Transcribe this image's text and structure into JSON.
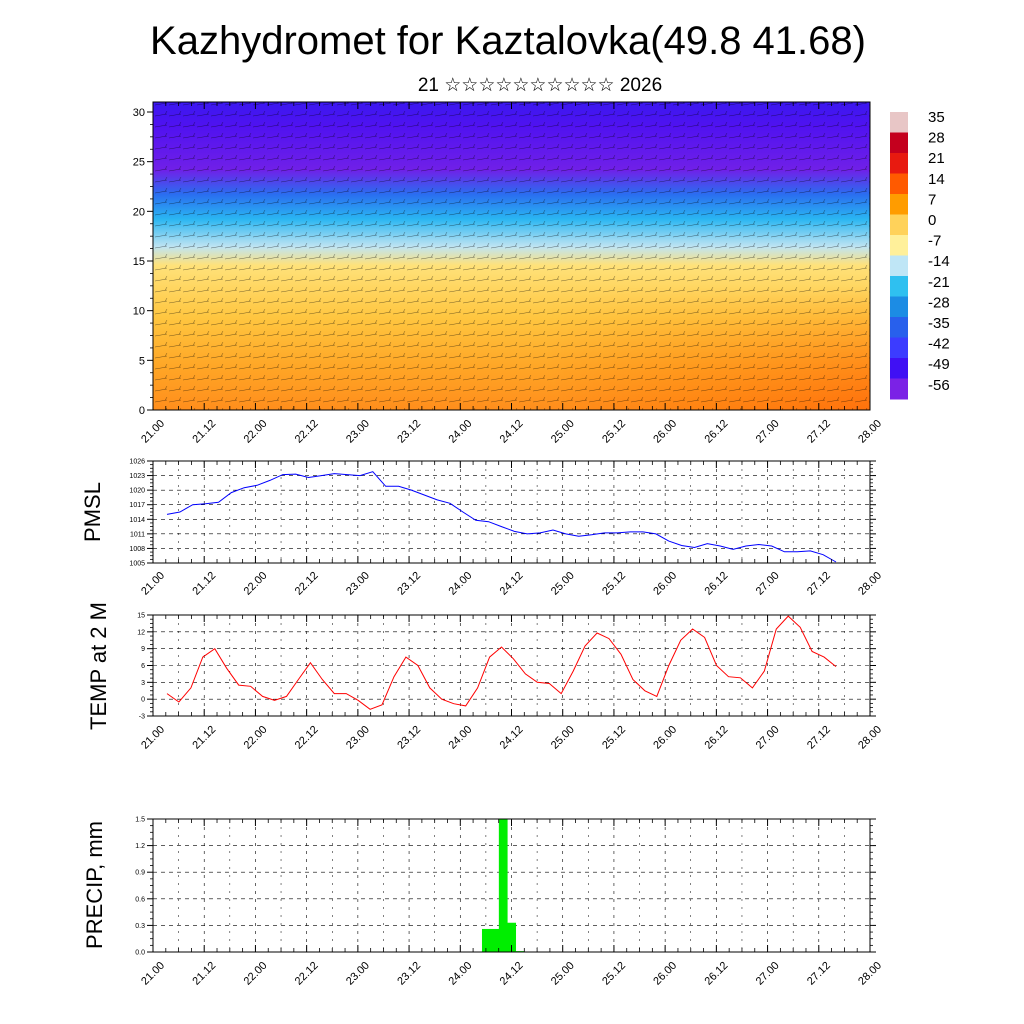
{
  "title": "Kazhydromet for Kaztalovka(49.8 41.68)",
  "subtitle": "21 ☆☆☆☆☆☆☆☆☆☆ 2026",
  "x_tick_labels": [
    "21.00",
    "21.12",
    "22.00",
    "22.12",
    "23.00",
    "23.12",
    "24.00",
    "24.12",
    "25.00",
    "25.12",
    "26.00",
    "26.12",
    "27.00",
    "27.12",
    "28.00"
  ],
  "colors": {
    "pmsl_line": "#0000ff",
    "temp_line": "#ff0000",
    "precip_bar": "#00ee00",
    "frame": "#000000"
  },
  "chart_data": [
    {
      "type": "heatmap",
      "name": "Temperature / wind cross-section (height levels)",
      "y_ticks": [
        0,
        5,
        10,
        15,
        20,
        25,
        30
      ],
      "ylim": [
        0,
        30
      ],
      "colorbar_labels": [
        "35",
        "28",
        "21",
        "14",
        "7",
        "0",
        "-7",
        "-14",
        "-21",
        "-28",
        "-35",
        "-42",
        "-49",
        "-56"
      ],
      "colorbar_colors": [
        "#e8c6c6",
        "#c4001e",
        "#e81a10",
        "#ff5a00",
        "#ff9c00",
        "#ffd25a",
        "#fff09a",
        "#bfe6f6",
        "#2fc0f0",
        "#1c8ce4",
        "#2860ec",
        "#3c3cff",
        "#4010f4",
        "#7b22e6"
      ],
      "x_ticks": [
        "21.00",
        "21.12",
        "22.00",
        "22.12",
        "23.00",
        "23.12",
        "24.00",
        "24.12",
        "25.00",
        "25.12",
        "26.00",
        "26.12",
        "27.00",
        "27.12",
        "28.00"
      ]
    },
    {
      "type": "line",
      "name": "PMSL",
      "ylabel": "PMSL",
      "ylim": [
        1005,
        1026
      ],
      "y_ticks": [
        1005,
        1008,
        1011,
        1014,
        1017,
        1020,
        1023,
        1026
      ],
      "x_ticks": [
        "21.00",
        "21.12",
        "22.00",
        "22.12",
        "23.00",
        "23.12",
        "24.00",
        "24.12",
        "25.00",
        "25.12",
        "26.00",
        "26.12",
        "27.00",
        "27.12",
        "28.00"
      ],
      "values": [
        1015,
        1015.5,
        1017,
        1017.2,
        1017.5,
        1019.5,
        1020.5,
        1021,
        1022,
        1023.2,
        1023.3,
        1022.6,
        1023,
        1023.4,
        1023.2,
        1023,
        1023.8,
        1020.8,
        1020.8,
        1020,
        1019,
        1018,
        1017.3,
        1015.5,
        1013.8,
        1013.5,
        1012.5,
        1011.5,
        1011,
        1011.2,
        1011.8,
        1011,
        1010.5,
        1010.8,
        1011.2,
        1011.2,
        1011.4,
        1011.4,
        1011,
        1009.5,
        1008.6,
        1008.2,
        1009,
        1008.5,
        1007.8,
        1008.5,
        1008.8,
        1008.5,
        1007.3,
        1007.3,
        1007.5,
        1006.7,
        1005.2
      ]
    },
    {
      "type": "line",
      "name": "TEMP at 2 M",
      "ylabel": "TEMP at 2 M",
      "ylim": [
        -3,
        15
      ],
      "y_ticks": [
        -3,
        0,
        3,
        6,
        9,
        12,
        15
      ],
      "x_ticks": [
        "21.00",
        "21.12",
        "22.00",
        "22.12",
        "23.00",
        "23.12",
        "24.00",
        "24.12",
        "25.00",
        "25.12",
        "26.00",
        "26.12",
        "27.00",
        "27.12",
        "28.00"
      ],
      "values": [
        1,
        -0.5,
        2,
        7.5,
        9,
        5.5,
        2.5,
        2.3,
        0.5,
        -0.2,
        0.5,
        3.5,
        6.5,
        3.5,
        1,
        1,
        -0.2,
        -1.8,
        -1,
        4,
        7.5,
        6,
        2,
        0,
        -0.8,
        -1.2,
        2,
        7.5,
        9.3,
        7.2,
        4.5,
        3,
        2.8,
        1,
        5,
        9.5,
        11.8,
        10.8,
        8,
        3.5,
        1.5,
        0.5,
        6,
        10.5,
        12.5,
        11,
        6,
        4,
        3.8,
        2,
        5,
        12.5,
        14.8,
        12.8,
        8.5,
        7.5,
        5.8
      ]
    },
    {
      "type": "bar",
      "name": "PRECIP, mm",
      "ylabel": "PRECIP, mm",
      "ylim": [
        0,
        1.5
      ],
      "y_ticks": [
        "0.0",
        "0.3",
        "0.6",
        "0.9",
        "1.2",
        "1.5"
      ],
      "x_ticks": [
        "21.00",
        "21.12",
        "22.00",
        "22.12",
        "23.00",
        "23.12",
        "24.00",
        "24.12",
        "25.00",
        "25.12",
        "26.00",
        "26.12",
        "27.00",
        "27.12",
        "28.00"
      ],
      "values": [
        0,
        0,
        0,
        0,
        0,
        0,
        0,
        0,
        0,
        0,
        0,
        0,
        0,
        0,
        0,
        0,
        0,
        0,
        0,
        0,
        0,
        0,
        0,
        0,
        0,
        0,
        0,
        0,
        0,
        0,
        0,
        0,
        0,
        0,
        0,
        0,
        0,
        0,
        0,
        0.26,
        0.26,
        1.6,
        0.33,
        0.01,
        0,
        0,
        0,
        0,
        0,
        0,
        0,
        0,
        0,
        0,
        0,
        0,
        0,
        0,
        0,
        0,
        0,
        0,
        0,
        0,
        0,
        0,
        0,
        0,
        0,
        0,
        0,
        0,
        0,
        0,
        0,
        0,
        0,
        0,
        0,
        0,
        0,
        0,
        0,
        0,
        0
      ]
    }
  ]
}
